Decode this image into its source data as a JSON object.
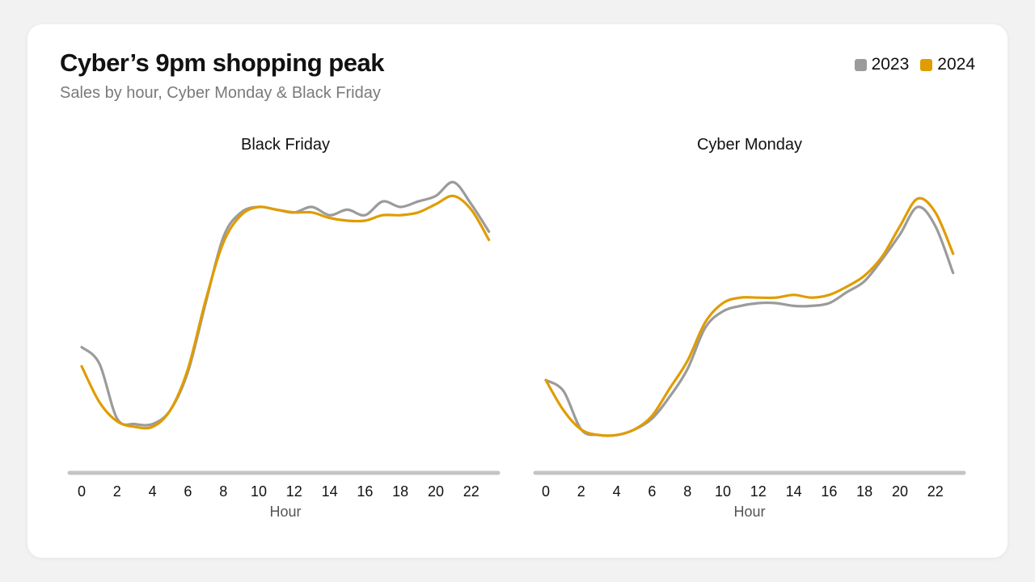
{
  "header": {
    "title": "Cyber’s 9pm shopping peak",
    "subtitle": "Sales by hour, Cyber Monday & Black Friday"
  },
  "legend": [
    {
      "label": "2023",
      "color": "#9b9b9b"
    },
    {
      "label": "2024",
      "color": "#e09c00"
    }
  ],
  "chart_data": [
    {
      "type": "line",
      "title": "Black Friday",
      "xlabel": "Hour",
      "ylabel": "",
      "x": [
        0,
        1,
        2,
        3,
        4,
        5,
        6,
        7,
        8,
        9,
        10,
        11,
        12,
        13,
        14,
        15,
        16,
        17,
        18,
        19,
        20,
        21,
        22,
        23
      ],
      "xticks": [
        "0",
        "2",
        "4",
        "6",
        "8",
        "10",
        "12",
        "14",
        "16",
        "18",
        "20",
        "22"
      ],
      "ylim": [
        0,
        100
      ],
      "grid": false,
      "series": [
        {
          "name": "2023",
          "color": "#9b9b9b",
          "values": [
            39,
            33,
            13,
            11,
            11,
            16,
            30,
            55,
            79,
            88,
            90,
            89,
            88,
            90,
            87,
            89,
            87,
            92,
            90,
            92,
            94,
            99,
            91,
            81
          ]
        },
        {
          "name": "2024",
          "color": "#e09c00",
          "values": [
            32,
            19,
            12,
            10,
            10,
            16,
            31,
            56,
            77,
            87,
            90,
            89,
            88,
            88,
            86,
            85,
            85,
            87,
            87,
            88,
            91,
            94,
            89,
            78
          ]
        }
      ]
    },
    {
      "type": "line",
      "title": "Cyber Monday",
      "xlabel": "Hour",
      "ylabel": "",
      "x": [
        0,
        1,
        2,
        3,
        4,
        5,
        6,
        7,
        8,
        9,
        10,
        11,
        12,
        13,
        14,
        15,
        16,
        17,
        18,
        19,
        20,
        21,
        22,
        23
      ],
      "xticks": [
        "0",
        "2",
        "4",
        "6",
        "8",
        "10",
        "12",
        "14",
        "16",
        "18",
        "20",
        "22"
      ],
      "ylim": [
        0,
        100
      ],
      "grid": false,
      "series": [
        {
          "name": "2023",
          "color": "#9b9b9b",
          "values": [
            27,
            23,
            9,
            7,
            7,
            9,
            13,
            21,
            31,
            46,
            52,
            54,
            55,
            55,
            54,
            54,
            55,
            59,
            63,
            71,
            80,
            90,
            83,
            66
          ]
        },
        {
          "name": "2024",
          "color": "#e09c00",
          "values": [
            27,
            16,
            9,
            7,
            7,
            9,
            14,
            24,
            34,
            48,
            55,
            57,
            57,
            57,
            58,
            57,
            58,
            61,
            65,
            72,
            83,
            93,
            88,
            73
          ]
        }
      ]
    }
  ]
}
